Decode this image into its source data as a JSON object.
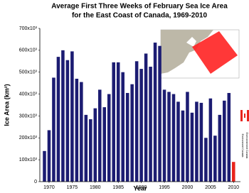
{
  "chart_data": {
    "type": "bar",
    "title": [
      "Average First Three Weeks of February Sea Ice Area",
      "for the East Coast of Canada, 1969-2010"
    ],
    "y_label": "Ice Area (km²)",
    "x_label": "Year",
    "x": [
      1969,
      1970,
      1971,
      1972,
      1973,
      1974,
      1975,
      1976,
      1977,
      1978,
      1979,
      1980,
      1981,
      1982,
      1983,
      1984,
      1985,
      1986,
      1987,
      1988,
      1989,
      1990,
      1991,
      1992,
      1993,
      1994,
      1995,
      1996,
      1997,
      1998,
      1999,
      2000,
      2001,
      2002,
      2003,
      2004,
      2005,
      2006,
      2007,
      2008,
      2009,
      2010
    ],
    "values": [
      140000,
      235000,
      475000,
      570000,
      600000,
      555000,
      595000,
      470000,
      455000,
      305000,
      285000,
      335000,
      420000,
      340000,
      400000,
      545000,
      545000,
      500000,
      405000,
      445000,
      550000,
      515000,
      585000,
      525000,
      635000,
      620000,
      420000,
      410000,
      400000,
      365000,
      325000,
      410000,
      315000,
      365000,
      360000,
      200000,
      380000,
      210000,
      305000,
      370000,
      405000,
      90000
    ],
    "colors": [
      "#1c1c72",
      "#1c1c72",
      "#1c1c72",
      "#1c1c72",
      "#1c1c72",
      "#1c1c72",
      "#1c1c72",
      "#1c1c72",
      "#1c1c72",
      "#1c1c72",
      "#1c1c72",
      "#1c1c72",
      "#1c1c72",
      "#1c1c72",
      "#1c1c72",
      "#1c1c72",
      "#1c1c72",
      "#1c1c72",
      "#1c1c72",
      "#1c1c72",
      "#1c1c72",
      "#1c1c72",
      "#1c1c72",
      "#1c1c72",
      "#1c1c72",
      "#1c1c72",
      "#1c1c72",
      "#1c1c72",
      "#1c1c72",
      "#1c1c72",
      "#1c1c72",
      "#1c1c72",
      "#1c1c72",
      "#1c1c72",
      "#1c1c72",
      "#1c1c72",
      "#1c1c72",
      "#1c1c72",
      "#1c1c72",
      "#1c1c72",
      "#1c1c72",
      "#e8241c"
    ],
    "xlim": [
      1968,
      2011.5
    ],
    "xticks": [
      1970,
      1975,
      1980,
      1985,
      1990,
      1995,
      2000,
      2005,
      2010
    ],
    "ylim": [
      0,
      700000
    ],
    "yticks": [
      0,
      {
        "value": 100000,
        "label": "100x10³"
      },
      {
        "value": 200000,
        "label": "200x10³"
      },
      {
        "value": 300000,
        "label": "300x10³"
      },
      {
        "value": 400000,
        "label": "400x10³"
      },
      {
        "value": 500000,
        "label": "500x10³"
      },
      {
        "value": 600000,
        "label": "600x10³"
      },
      {
        "value": 700000,
        "label": "700x10³"
      }
    ],
    "logo_text": [
      "Environment Canada",
      "Environnement Canada"
    ]
  }
}
